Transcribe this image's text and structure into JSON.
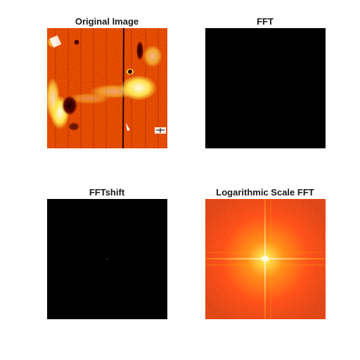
{
  "figure": {
    "panels": [
      {
        "id": "original",
        "title": "Original Image"
      },
      {
        "id": "fft",
        "title": "FFT"
      },
      {
        "id": "shift",
        "title": "FFTshift"
      },
      {
        "id": "log",
        "title": "Logarithmic Scale FFT"
      }
    ]
  },
  "colors": {
    "background": "#ffffff",
    "black": "#000000",
    "hot_dark": "#7a0a00",
    "hot_red": "#d81e00",
    "hot_orange": "#ff7a00",
    "hot_yellow": "#ffe14a",
    "hot_white": "#fffbe8"
  },
  "icons": {
    "original": "surface-texture-image",
    "fft": "black-spectrum-image",
    "shift": "centered-spectrum-dot-image",
    "log": "log-spectrum-image"
  }
}
